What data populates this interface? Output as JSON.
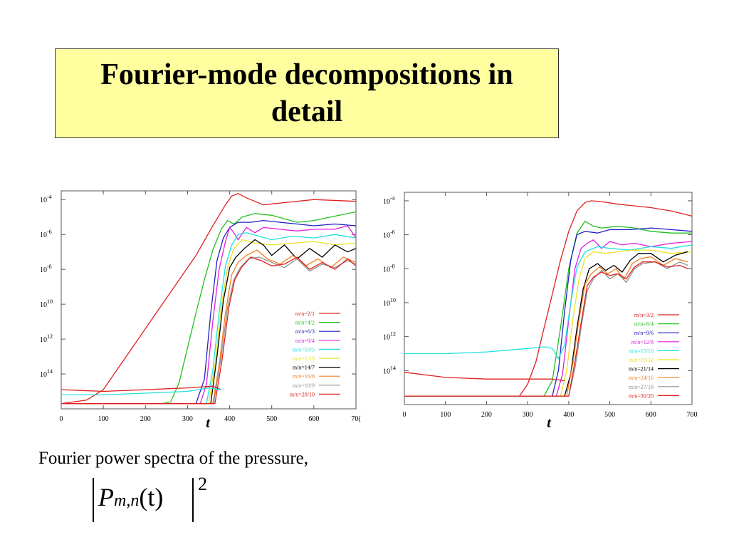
{
  "slide": {
    "title": "Fourier-mode decompositions in detail",
    "caption": "Fourier power spectra of the pressure,",
    "formula": {
      "symbol": "P",
      "subscript": "m,n",
      "argument": "(t)",
      "exponent": "2"
    }
  },
  "chart_data": [
    {
      "type": "line",
      "title": "",
      "xlabel": "t",
      "ylabel": "",
      "log_y": true,
      "xlim": [
        0,
        700
      ],
      "ylim_exp": [
        -16,
        -3.5
      ],
      "x_ticks": [
        "0",
        "100",
        "200",
        "300",
        "400",
        "500",
        "600",
        "70("
      ],
      "y_ticks": [
        {
          "base": "10",
          "exp": "-4",
          "value": -4
        },
        {
          "base": "10",
          "exp": "-6",
          "value": -6
        },
        {
          "base": "10",
          "exp": "-8",
          "value": -8
        },
        {
          "base": "10",
          "exp": "10",
          "value": -10
        },
        {
          "base": "10",
          "exp": "12",
          "value": -12
        },
        {
          "base": "10",
          "exp": "14",
          "value": -14
        }
      ],
      "legend_position": "bottom-right",
      "series": [
        {
          "name": "m/n=2/1",
          "color": "#e02020",
          "x": [
            0,
            60,
            100,
            140,
            200,
            260,
            320,
            360,
            390,
            405,
            420,
            440,
            480,
            520,
            600,
            700
          ],
          "y": [
            -15.7,
            -15.5,
            -14.9,
            -13.5,
            -11.4,
            -9.3,
            -7.2,
            -5.5,
            -4.3,
            -3.8,
            -3.65,
            -3.9,
            -4.3,
            -4.2,
            -4.0,
            -4.1
          ]
        },
        {
          "name": "m/n=4/2",
          "color": "#20c020",
          "x": [
            0,
            240,
            260,
            280,
            300,
            320,
            340,
            360,
            380,
            395,
            410,
            430,
            460,
            500,
            560,
            600,
            700
          ],
          "y": [
            -15.7,
            -15.7,
            -15.6,
            -14.5,
            -12.5,
            -10.5,
            -8.6,
            -6.9,
            -5.7,
            -5.2,
            -5.4,
            -5.0,
            -4.8,
            -4.9,
            -5.3,
            -5.2,
            -4.7
          ]
        },
        {
          "name": "m/n=6/3",
          "color": "#2020c0",
          "x": [
            0,
            320,
            340,
            355,
            370,
            385,
            400,
            420,
            450,
            480,
            520,
            560,
            600,
            650,
            700
          ],
          "y": [
            -15.7,
            -15.7,
            -14.3,
            -10.5,
            -7.5,
            -6.2,
            -5.6,
            -5.3,
            -5.3,
            -5.2,
            -5.3,
            -5.4,
            -5.5,
            -5.4,
            -5.5
          ]
        },
        {
          "name": "m/n=8/4",
          "color": "#e020e0",
          "x": [
            0,
            330,
            345,
            360,
            375,
            390,
            400,
            410,
            420,
            440,
            460,
            480,
            520,
            560,
            600,
            650,
            680,
            700
          ],
          "y": [
            -15.7,
            -15.7,
            -14.6,
            -11.0,
            -8.0,
            -6.4,
            -5.6,
            -5.9,
            -6.3,
            -5.6,
            -5.9,
            -5.6,
            -5.7,
            -5.8,
            -5.7,
            -5.7,
            -5.5,
            -6.2
          ]
        },
        {
          "name": "m/n=10/5",
          "color": "#20e0e0",
          "x": [
            0,
            345,
            360,
            375,
            390,
            405,
            420,
            440,
            470,
            500,
            550,
            600,
            650,
            700
          ],
          "y": [
            -15.7,
            -15.7,
            -13.8,
            -10.5,
            -7.8,
            -6.6,
            -6.0,
            -5.9,
            -6.1,
            -6.3,
            -6.1,
            -6.2,
            -6.0,
            -6.2
          ]
        },
        {
          "name": "m/n=12/6",
          "color": "#f0e020",
          "x": [
            0,
            350,
            365,
            380,
            395,
            410,
            430,
            460,
            500,
            550,
            600,
            650,
            700
          ],
          "y": [
            -15.7,
            -15.7,
            -13.5,
            -10.2,
            -7.9,
            -6.8,
            -6.3,
            -6.5,
            -6.6,
            -6.5,
            -6.4,
            -6.6,
            -6.5
          ]
        },
        {
          "name": "m/n=14/7",
          "color": "#000000",
          "x": [
            0,
            355,
            370,
            385,
            400,
            415,
            435,
            460,
            480,
            500,
            530,
            560,
            590,
            620,
            650,
            680,
            700
          ],
          "y": [
            -15.7,
            -15.7,
            -13.0,
            -9.8,
            -7.9,
            -7.3,
            -6.8,
            -6.3,
            -6.6,
            -7.2,
            -6.6,
            -7.4,
            -6.8,
            -7.3,
            -6.6,
            -7.0,
            -6.8
          ]
        },
        {
          "name": "m/n=16/8",
          "color": "#f08020",
          "x": [
            0,
            360,
            375,
            390,
            405,
            420,
            440,
            465,
            490,
            520,
            550,
            580,
            610,
            640,
            670,
            700
          ],
          "y": [
            -15.7,
            -15.7,
            -13.5,
            -10.5,
            -8.3,
            -7.6,
            -7.2,
            -6.9,
            -7.4,
            -7.7,
            -7.2,
            -7.8,
            -7.4,
            -7.9,
            -7.3,
            -7.6
          ]
        },
        {
          "name": "m/n=18/9",
          "color": "#909090",
          "x": [
            0,
            362,
            380,
            395,
            410,
            425,
            445,
            470,
            500,
            530,
            560,
            590,
            620,
            650,
            680,
            700
          ],
          "y": [
            -15.7,
            -15.7,
            -13.0,
            -10.2,
            -8.6,
            -7.9,
            -7.4,
            -7.3,
            -7.6,
            -7.9,
            -7.4,
            -8.1,
            -7.7,
            -7.9,
            -7.5,
            -7.7
          ]
        },
        {
          "name": "m/n=20/10",
          "color": "#e02020",
          "x": [
            0,
            365,
            382,
            398,
            412,
            428,
            450,
            475,
            500,
            530,
            560,
            590,
            620,
            650,
            680,
            700
          ],
          "y": [
            -15.7,
            -15.7,
            -13.2,
            -10.2,
            -8.6,
            -7.9,
            -7.3,
            -7.5,
            -7.8,
            -7.7,
            -7.3,
            -8.0,
            -7.6,
            -8.0,
            -7.4,
            -7.8
          ]
        },
        {
          "name": "",
          "color": "#e02020",
          "x": [
            0,
            100,
            200,
            300,
            360,
            380
          ],
          "y": [
            -14.9,
            -15.0,
            -14.9,
            -14.8,
            -14.7,
            -14.9
          ]
        },
        {
          "name": "",
          "color": "#20e0e0",
          "x": [
            0,
            100,
            200,
            300,
            350,
            380
          ],
          "y": [
            -15.2,
            -15.2,
            -15.1,
            -15.0,
            -14.8,
            -14.9
          ]
        }
      ]
    },
    {
      "type": "line",
      "title": "",
      "xlabel": "t",
      "ylabel": "",
      "log_y": true,
      "xlim": [
        0,
        700
      ],
      "ylim_exp": [
        -16,
        -3.5
      ],
      "x_ticks": [
        "0",
        "100",
        "200",
        "300",
        "400",
        "500",
        "600",
        "700"
      ],
      "y_ticks": [
        {
          "base": "10",
          "exp": "-4",
          "value": -4
        },
        {
          "base": "10",
          "exp": "-6",
          "value": -6
        },
        {
          "base": "10",
          "exp": "-8",
          "value": -8
        },
        {
          "base": "10",
          "exp": "10",
          "value": -10
        },
        {
          "base": "10",
          "exp": "12",
          "value": -12
        },
        {
          "base": "10",
          "exp": "14",
          "value": -14
        }
      ],
      "legend_position": "bottom-right",
      "series": [
        {
          "name": "m/n=3/2",
          "color": "#e02020",
          "x": [
            0,
            280,
            300,
            320,
            340,
            360,
            380,
            400,
            420,
            440,
            455,
            480,
            520,
            600,
            650,
            700
          ],
          "y": [
            -15.5,
            -15.5,
            -14.8,
            -13.5,
            -11.5,
            -9.5,
            -7.5,
            -5.8,
            -4.6,
            -4.1,
            -4.0,
            -4.05,
            -4.2,
            -4.4,
            -4.6,
            -4.9
          ]
        },
        {
          "name": "m/n=6/4",
          "color": "#20c020",
          "x": [
            0,
            340,
            360,
            380,
            400,
            420,
            440,
            460,
            480,
            520,
            560,
            600,
            650,
            700
          ],
          "y": [
            -15.5,
            -15.5,
            -14.6,
            -11.5,
            -8.0,
            -5.9,
            -5.2,
            -5.5,
            -5.6,
            -5.5,
            -5.6,
            -5.8,
            -5.9,
            -5.9
          ]
        },
        {
          "name": "m/n=9/6",
          "color": "#2020c0",
          "x": [
            0,
            360,
            375,
            390,
            405,
            420,
            440,
            470,
            500,
            550,
            600,
            650,
            700
          ],
          "y": [
            -15.5,
            -15.5,
            -14.0,
            -10.5,
            -7.5,
            -6.0,
            -5.8,
            -5.9,
            -5.7,
            -5.7,
            -5.6,
            -5.7,
            -5.8
          ]
        },
        {
          "name": "m/n=12/8",
          "color": "#e020e0",
          "x": [
            0,
            370,
            385,
            400,
            415,
            430,
            445,
            460,
            480,
            500,
            530,
            560,
            600,
            650,
            700
          ],
          "y": [
            -15.5,
            -15.5,
            -14.2,
            -11.0,
            -8.0,
            -6.8,
            -6.5,
            -6.3,
            -6.8,
            -6.4,
            -6.6,
            -6.5,
            -6.7,
            -6.5,
            -6.4
          ]
        },
        {
          "name": "m/n=15/10",
          "color": "#20e0e0",
          "x": [
            0,
            100,
            200,
            300,
            340,
            360,
            375,
            390,
            405,
            420,
            440,
            470,
            500,
            550,
            600,
            650,
            700
          ],
          "y": [
            -13.0,
            -13.0,
            -12.9,
            -12.7,
            -12.6,
            -12.7,
            -13.3,
            -12.5,
            -10.0,
            -7.9,
            -7.0,
            -6.7,
            -6.8,
            -6.9,
            -6.7,
            -6.8,
            -6.6
          ]
        },
        {
          "name": "m/n=18/12",
          "color": "#f0e020",
          "x": [
            0,
            380,
            395,
            410,
            425,
            440,
            460,
            490,
            520,
            560,
            600,
            650,
            700
          ],
          "y": [
            -15.5,
            -15.5,
            -14.0,
            -11.0,
            -8.6,
            -7.4,
            -7.0,
            -7.1,
            -7.0,
            -6.9,
            -6.9,
            -7.1,
            -7.0
          ]
        },
        {
          "name": "m/n=21/14",
          "color": "#000000",
          "x": [
            0,
            390,
            405,
            420,
            435,
            450,
            470,
            490,
            510,
            530,
            550,
            570,
            600,
            630,
            660,
            690
          ],
          "y": [
            -15.5,
            -15.5,
            -14.2,
            -11.5,
            -9.2,
            -8.0,
            -7.7,
            -8.1,
            -7.8,
            -8.2,
            -7.5,
            -7.1,
            -7.1,
            -7.6,
            -7.2,
            -7.0
          ]
        },
        {
          "name": "m/n=24/16",
          "color": "#f08020",
          "x": [
            0,
            395,
            410,
            425,
            440,
            455,
            475,
            495,
            515,
            535,
            555,
            575,
            600,
            630,
            660,
            690
          ],
          "y": [
            -15.5,
            -15.5,
            -13.6,
            -11.0,
            -8.9,
            -8.3,
            -7.9,
            -8.3,
            -8.0,
            -8.6,
            -7.7,
            -7.4,
            -7.3,
            -7.8,
            -7.4,
            -7.6
          ]
        },
        {
          "name": "m/n=27/18",
          "color": "#909090",
          "x": [
            0,
            400,
            415,
            430,
            445,
            460,
            480,
            500,
            520,
            540,
            560,
            580,
            610,
            640,
            670,
            690
          ],
          "y": [
            -15.5,
            -15.5,
            -13.9,
            -11.5,
            -9.3,
            -8.6,
            -8.1,
            -8.6,
            -8.3,
            -8.8,
            -8.0,
            -7.7,
            -7.6,
            -8.0,
            -7.6,
            -7.8
          ]
        },
        {
          "name": "m/n=30/20",
          "color": "#e02020",
          "x": [
            0,
            400,
            415,
            430,
            445,
            460,
            480,
            500,
            520,
            540,
            560,
            580,
            610,
            640,
            670,
            690
          ],
          "y": [
            -15.5,
            -15.5,
            -13.5,
            -11.2,
            -9.0,
            -8.5,
            -8.2,
            -8.4,
            -8.3,
            -8.6,
            -7.9,
            -7.6,
            -7.6,
            -7.9,
            -7.8,
            -8.0
          ]
        },
        {
          "name": "",
          "color": "#e02020",
          "x": [
            0,
            100,
            200,
            300,
            360,
            390
          ],
          "y": [
            -14.1,
            -14.4,
            -14.5,
            -14.5,
            -14.5,
            -14.6
          ]
        }
      ]
    }
  ]
}
